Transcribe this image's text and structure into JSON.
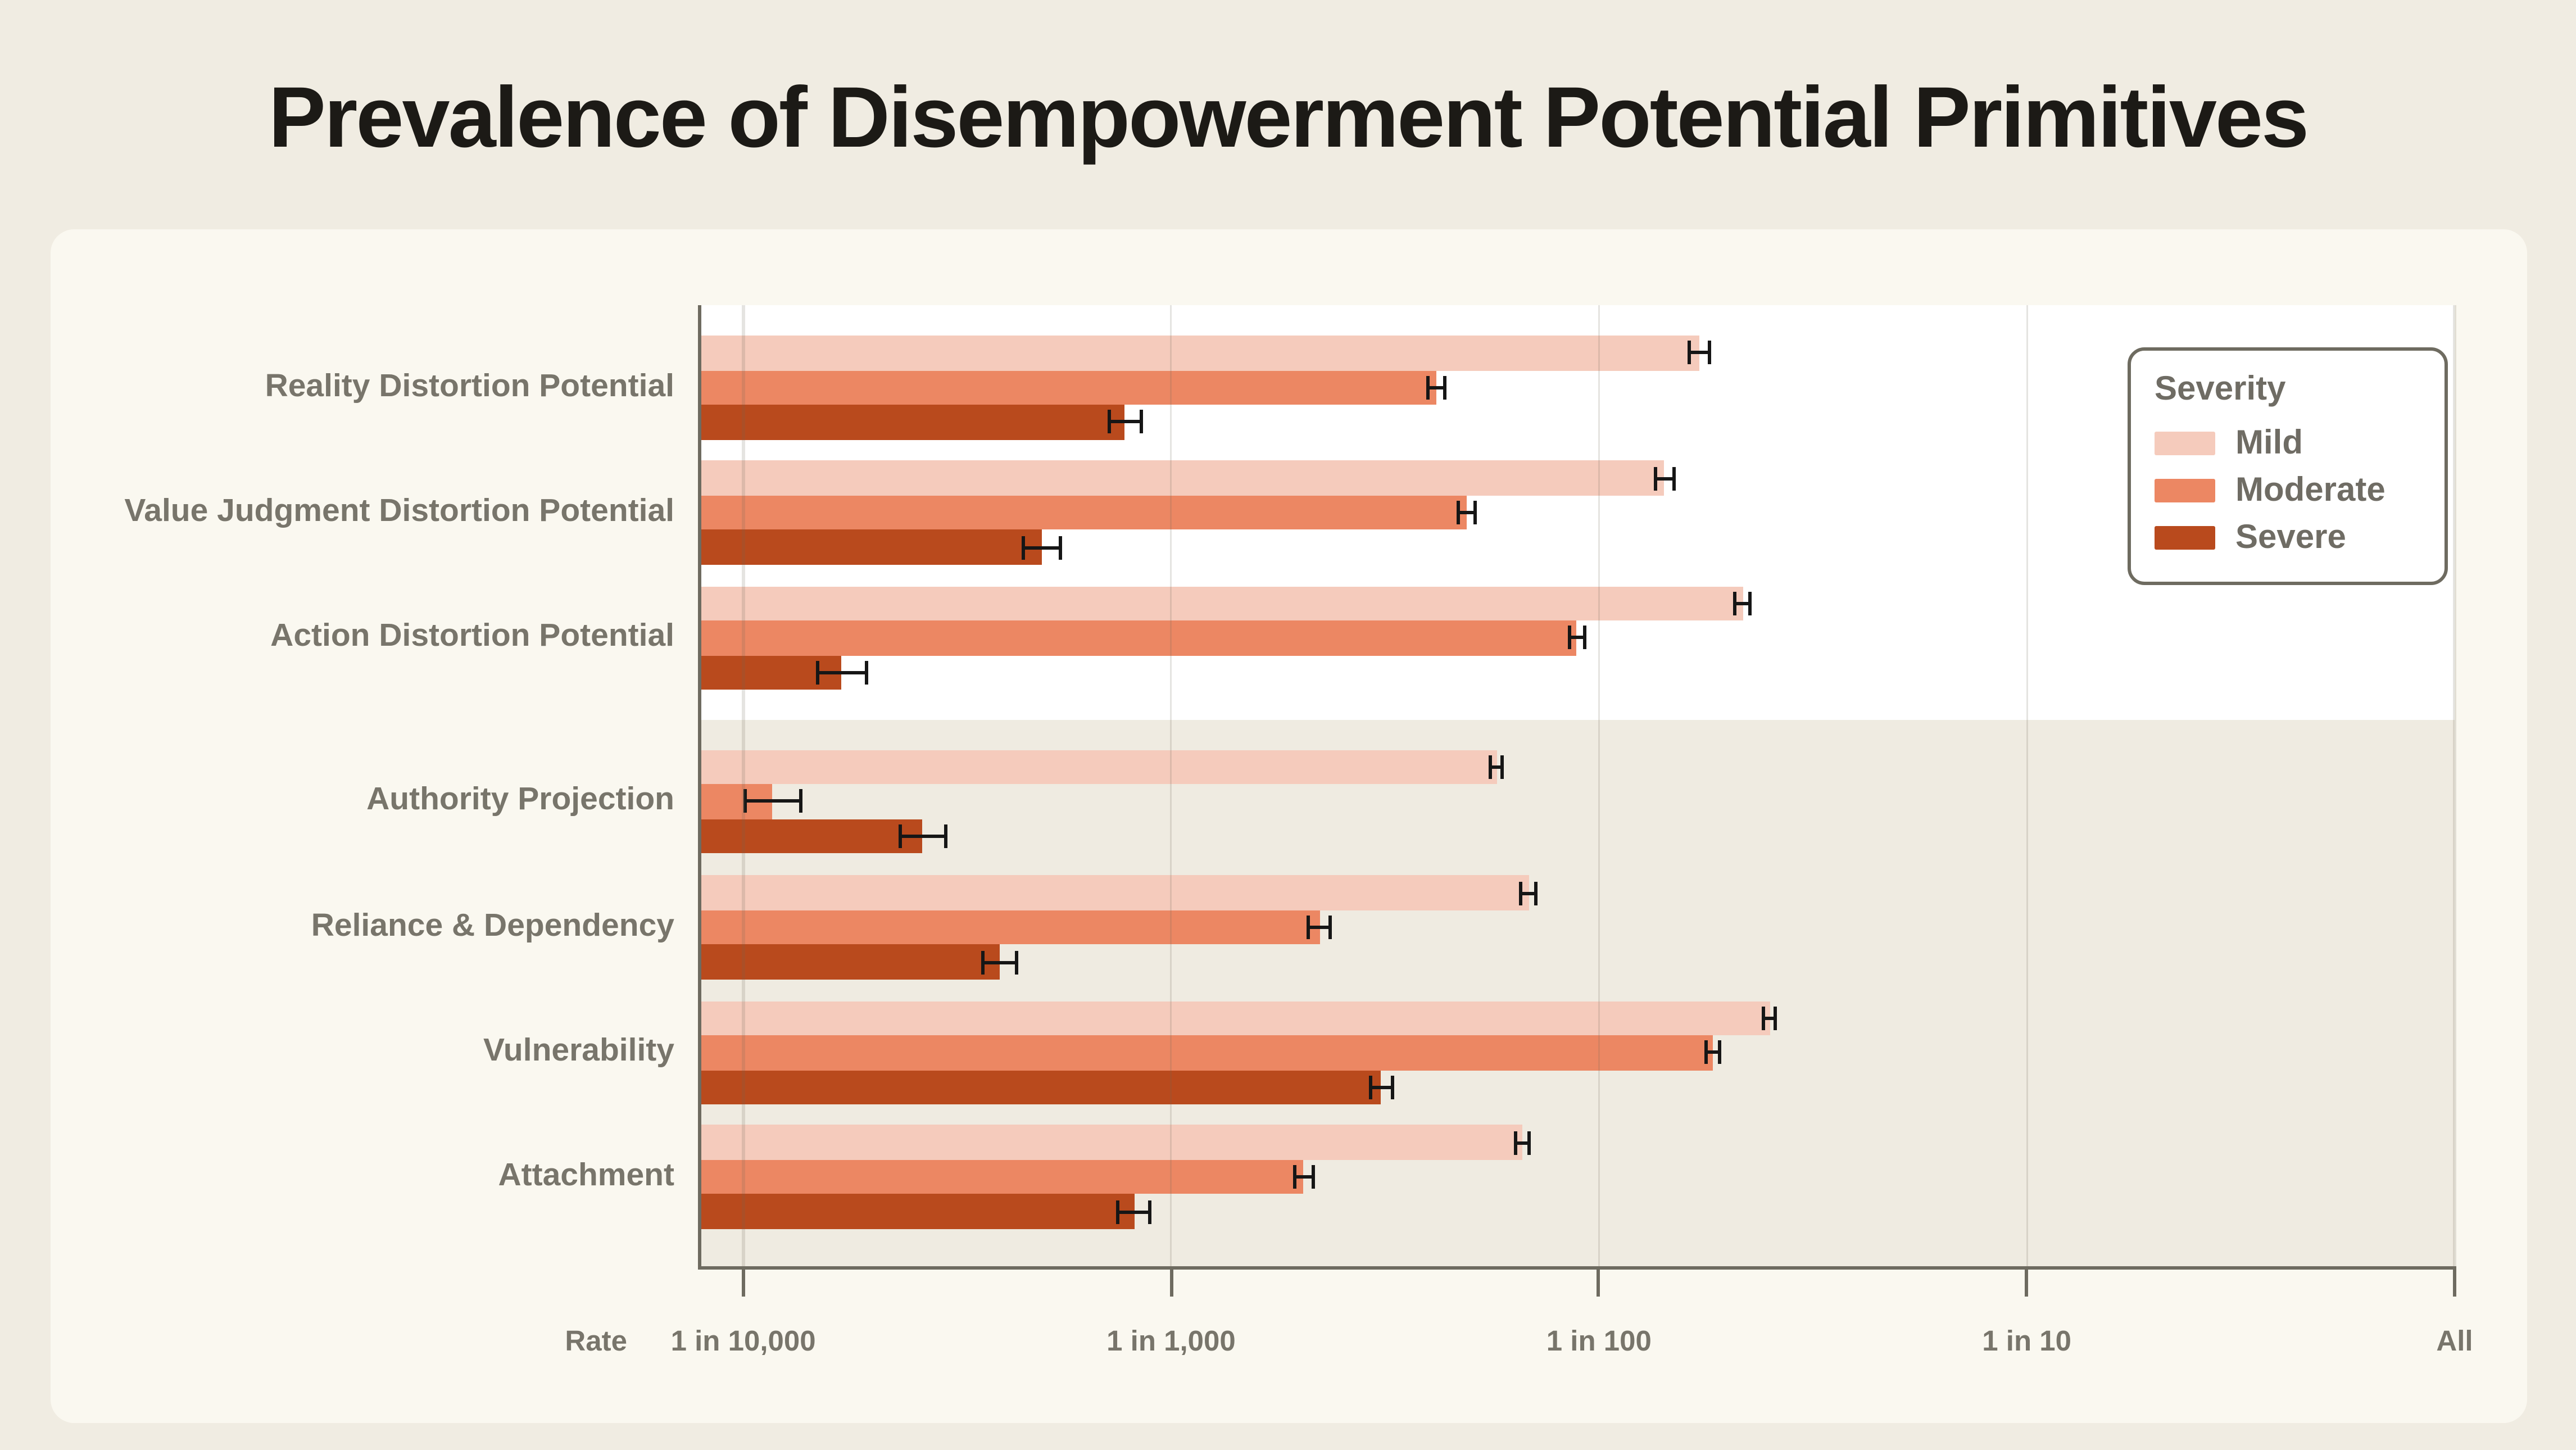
{
  "page": {
    "title": "Prevalence of Disempowerment Potential Primitives"
  },
  "chart_data": {
    "type": "bar",
    "orientation": "horizontal",
    "x_scale": "log",
    "title": "Prevalence of Disempowerment Potential Primitives",
    "x_axis": {
      "label": "Rate",
      "range_log10": [
        -4.102,
        0
      ],
      "grid": true,
      "ticks": [
        {
          "label": "1 in 10,000",
          "value": 0.0001
        },
        {
          "label": "1 in 1,000",
          "value": 0.001
        },
        {
          "label": "1 in 100",
          "value": 0.01
        },
        {
          "label": "1 in 10",
          "value": 0.1
        },
        {
          "label": "All",
          "value": 1
        }
      ]
    },
    "legend": {
      "title": "Severity",
      "position": "top-right",
      "items": [
        {
          "label": "Mild",
          "color": "#f5cbbc"
        },
        {
          "label": "Moderate",
          "color": "#ec8763"
        },
        {
          "label": "Severe",
          "color": "#b94a1d"
        }
      ]
    },
    "bands": {
      "top_background": "#ffffff",
      "bottom_background": "#efebe1"
    },
    "groups": [
      {
        "label": "Reality Distortion Potential",
        "band": "top",
        "bars": [
          {
            "severity": "Mild",
            "rate": 0.0172,
            "approx": "1 in 58",
            "ci": [
              0.0163,
              0.0181
            ]
          },
          {
            "severity": "Moderate",
            "rate": 0.00416,
            "approx": "1 in 240",
            "ci": [
              0.00397,
              0.00436
            ]
          },
          {
            "severity": "Severe",
            "rate": 0.00078,
            "approx": "1 in 1,280",
            "ci": [
              0.00072,
              0.00085
            ]
          }
        ]
      },
      {
        "label": "Value Judgment Distortion Potential",
        "band": "top",
        "bars": [
          {
            "severity": "Mild",
            "rate": 0.01425,
            "approx": "1 in 70",
            "ci": [
              0.01352,
              0.01503
            ]
          },
          {
            "severity": "Moderate",
            "rate": 0.0049,
            "approx": "1 in 204",
            "ci": [
              0.00468,
              0.00513
            ]
          },
          {
            "severity": "Severe",
            "rate": 0.000498,
            "approx": "1 in 2,000",
            "ci": [
              0.00045,
              0.000551
            ]
          }
        ]
      },
      {
        "label": "Action Distortion Potential",
        "band": "top",
        "bars": [
          {
            "severity": "Mild",
            "rate": 0.0217,
            "approx": "1 in 46",
            "ci": [
              0.0208,
              0.0226
            ]
          },
          {
            "severity": "Moderate",
            "rate": 0.00889,
            "approx": "1 in 112",
            "ci": [
              0.00853,
              0.00927
            ]
          },
          {
            "severity": "Severe",
            "rate": 0.00017,
            "approx": "1 in 5,880",
            "ci": [
              0.000149,
              0.000194
            ]
          }
        ]
      },
      {
        "label": "Authority Projection",
        "band": "bottom",
        "bars": [
          {
            "severity": "Mild",
            "rate": 0.00577,
            "approx": "1 in 173",
            "ci": [
              0.00559,
              0.00596
            ]
          },
          {
            "severity": "Moderate",
            "rate": 0.000117,
            "approx": "1 in 8,550",
            "ci": [
              0.000101,
              0.000136
            ]
          },
          {
            "severity": "Severe",
            "rate": 0.000263,
            "approx": "1 in 3,800",
            "ci": [
              0.000233,
              0.000297
            ]
          }
        ]
      },
      {
        "label": "Reliance & Dependency",
        "band": "bottom",
        "bars": [
          {
            "severity": "Mild",
            "rate": 0.00686,
            "approx": "1 in 146",
            "ci": [
              0.00658,
              0.00715
            ]
          },
          {
            "severity": "Moderate",
            "rate": 0.00222,
            "approx": "1 in 450",
            "ci": [
              0.00209,
              0.00236
            ]
          },
          {
            "severity": "Severe",
            "rate": 0.000398,
            "approx": "1 in 2,510",
            "ci": [
              0.000364,
              0.000435
            ]
          }
        ]
      },
      {
        "label": "Vulnerability",
        "band": "bottom",
        "bars": [
          {
            "severity": "Mild",
            "rate": 0.0251,
            "approx": "1 in 40",
            "ci": [
              0.0243,
              0.0259
            ]
          },
          {
            "severity": "Moderate",
            "rate": 0.0185,
            "approx": "1 in 54",
            "ci": [
              0.0178,
              0.0192
            ]
          },
          {
            "severity": "Severe",
            "rate": 0.0031,
            "approx": "1 in 323",
            "ci": [
              0.00292,
              0.00329
            ]
          }
        ]
      },
      {
        "label": "Attachment",
        "band": "bottom",
        "bars": [
          {
            "severity": "Mild",
            "rate": 0.0066,
            "approx": "1 in 152",
            "ci": [
              0.00636,
              0.00685
            ]
          },
          {
            "severity": "Moderate",
            "rate": 0.00204,
            "approx": "1 in 490",
            "ci": [
              0.00194,
              0.00214
            ]
          },
          {
            "severity": "Severe",
            "rate": 0.00082,
            "approx": "1 in 1,220",
            "ci": [
              0.000753,
              0.000893
            ]
          }
        ]
      }
    ]
  }
}
